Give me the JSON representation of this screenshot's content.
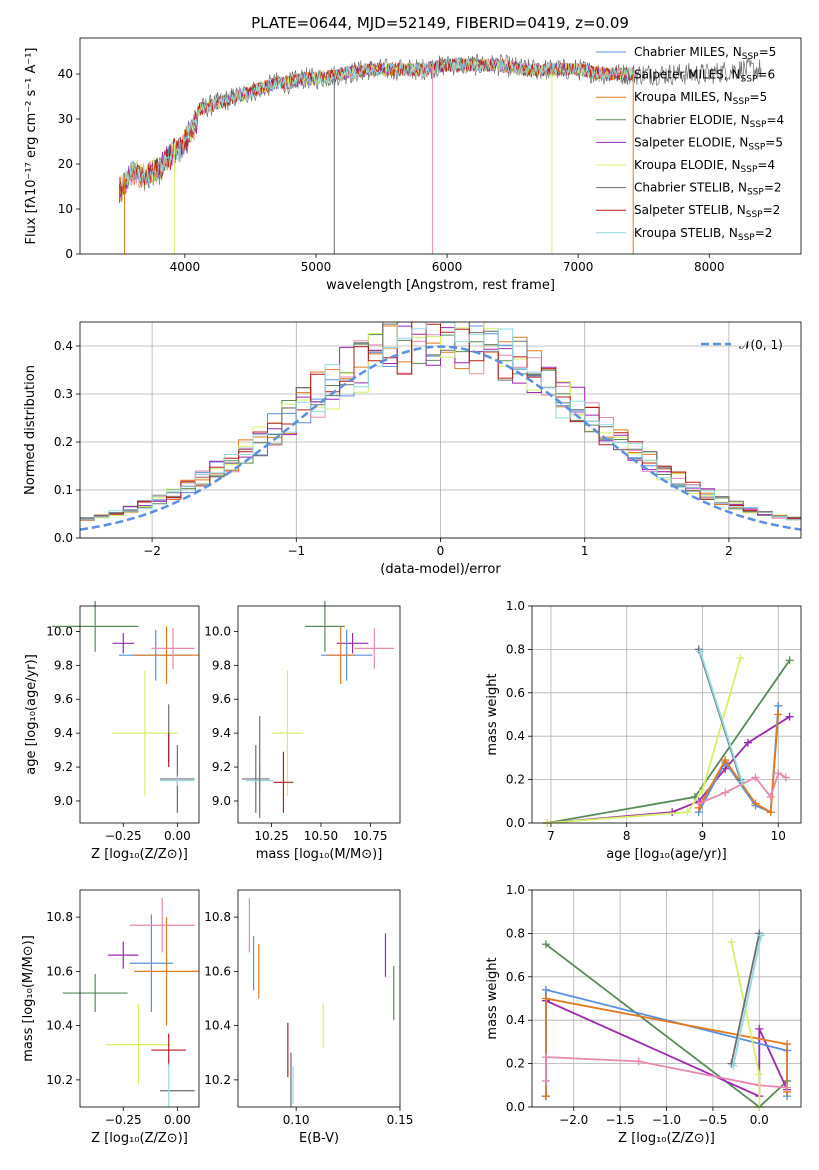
{
  "figure_title": "PLATE=0644, MJD=52149, FIBERID=0419, z=0.09",
  "colors": {
    "chabrier_miles": "#5b8fe0",
    "salpeter_miles": "#e88ab0",
    "kroupa_miles": "#e07b20",
    "chabrier_elodie": "#5a8a5a",
    "salpeter_elodie": "#9c27b0",
    "kroupa_elodie": "#d4f06a",
    "chabrier_stelib": "#6e6e6e",
    "salpeter_stelib": "#b71c1c",
    "kroupa_stelib": "#93d9e0"
  },
  "chart_data": [
    {
      "id": "spectrum",
      "type": "line",
      "xlabel": "wavelength [Angstrom, rest frame]",
      "ylabel": "Flux [fλ10⁻¹⁷ erg cm⁻² s⁻¹ A⁻¹]",
      "xlim": [
        3200,
        8700
      ],
      "ylim": [
        0,
        48
      ],
      "xticks": [
        4000,
        5000,
        6000,
        7000,
        8000
      ],
      "yticks": [
        0,
        10,
        20,
        30,
        40
      ],
      "legend_position": "top-right",
      "grid": false,
      "spectrum_envelope": {
        "x": [
          3500,
          3600,
          3700,
          3800,
          3900,
          4000,
          4100,
          4200,
          4300,
          4400,
          4500,
          4600,
          4700,
          4800,
          4900,
          5000,
          5200,
          5400,
          5600,
          5800,
          6000,
          6200,
          6400,
          6600,
          6800,
          7000,
          7200,
          7400,
          7600,
          7800,
          8000,
          8200,
          8400
        ],
        "y": [
          16,
          20,
          19,
          21,
          24,
          27,
          32,
          33,
          34,
          35,
          36,
          37,
          38,
          38,
          39,
          39,
          40,
          41,
          41,
          41,
          42,
          42,
          42,
          41,
          41,
          41,
          40,
          40,
          40,
          40,
          40,
          41,
          41
        ]
      },
      "series": [
        {
          "name": "Chabrier MILES, N_SSP=5",
          "label_main": "Chabrier MILES, N",
          "label_sub": "SSP",
          "label_tail": "=5",
          "color_key": "chabrier_miles"
        },
        {
          "name": "Salpeter MILES, N_SSP=6",
          "label_main": "Salpeter MILES, N",
          "label_sub": "SSP",
          "label_tail": "=6",
          "color_key": "salpeter_miles"
        },
        {
          "name": "Kroupa MILES, N_SSP=5",
          "label_main": "Kroupa MILES, N",
          "label_sub": "SSP",
          "label_tail": "=5",
          "color_key": "kroupa_miles"
        },
        {
          "name": "Chabrier ELODIE, N_SSP=4",
          "label_main": "Chabrier ELODIE, N",
          "label_sub": "SSP",
          "label_tail": "=4",
          "color_key": "chabrier_elodie"
        },
        {
          "name": "Salpeter ELODIE, N_SSP=5",
          "label_main": "Salpeter ELODIE, N",
          "label_sub": "SSP",
          "label_tail": "=5",
          "color_key": "salpeter_elodie"
        },
        {
          "name": "Kroupa ELODIE, N_SSP=4",
          "label_main": "Kroupa ELODIE, N",
          "label_sub": "SSP",
          "label_tail": "=4",
          "color_key": "kroupa_elodie"
        },
        {
          "name": "Chabrier STELIB, N_SSP=2",
          "label_main": "Chabrier STELIB, N",
          "label_sub": "SSP",
          "label_tail": "=2",
          "color_key": "chabrier_stelib"
        },
        {
          "name": "Salpeter STELIB, N_SSP=2",
          "label_main": "Salpeter STELIB, N",
          "label_sub": "SSP",
          "label_tail": "=2",
          "color_key": "salpeter_stelib"
        },
        {
          "name": "Kroupa STELIB, N_SSP=2",
          "label_main": "Kroupa STELIB, N",
          "label_sub": "SSP",
          "label_tail": "=2",
          "color_key": "kroupa_stelib"
        }
      ]
    },
    {
      "id": "residuals",
      "type": "histogram",
      "xlabel": "(data-model)/error",
      "ylabel": "Normed distribution",
      "xlim": [
        -2.5,
        2.5
      ],
      "ylim": [
        0,
        0.45
      ],
      "xticks": [
        -2,
        -1,
        0,
        1,
        2
      ],
      "yticks": [
        0.0,
        0.1,
        0.2,
        0.3,
        0.4
      ],
      "grid": true,
      "legend_position": "top-right",
      "reference_curve": {
        "name": "𝒩(0, 1)",
        "mean": 0,
        "sigma": 1,
        "color": "#5b8fe0"
      }
    },
    {
      "id": "age_vs_z",
      "type": "scatter",
      "xlabel": "Z [log₁₀(Z/Z⊙)]",
      "ylabel": "age  [log₁₀(age/yr)]",
      "xlim": [
        -0.45,
        0.1
      ],
      "ylim": [
        8.87,
        10.15
      ],
      "xticks": [
        -0.25,
        0.0
      ],
      "xtick_labels": [
        "−0.25",
        "0.00"
      ],
      "yticks": [
        9.0,
        9.2,
        9.4,
        9.6,
        9.8,
        10.0
      ],
      "grid": false,
      "points": [
        {
          "color_key": "chabrier_elodie",
          "x": -0.38,
          "y": 10.03,
          "xerr": 0.2,
          "yerr": 0.15
        },
        {
          "color_key": "salpeter_elodie",
          "x": -0.25,
          "y": 9.93,
          "xerr": 0.05,
          "yerr": 0.06
        },
        {
          "color_key": "chabrier_miles",
          "x": -0.1,
          "y": 9.86,
          "xerr": 0.17,
          "yerr": 0.15
        },
        {
          "color_key": "kroupa_miles",
          "x": -0.05,
          "y": 9.86,
          "xerr": 0.15,
          "yerr": 0.17
        },
        {
          "color_key": "salpeter_miles",
          "x": -0.02,
          "y": 9.9,
          "xerr": 0.1,
          "yerr": 0.12
        },
        {
          "color_key": "kroupa_elodie",
          "x": -0.15,
          "y": 9.4,
          "xerr": 0.15,
          "yerr": 0.37
        },
        {
          "color_key": "chabrier_stelib",
          "x": -0.04,
          "y": 9.4,
          "xerr": 0.0,
          "yerr": 0.17
        },
        {
          "color_key": "salpeter_stelib",
          "x": -0.04,
          "y": 9.3,
          "xerr": 0.0,
          "yerr": 0.1
        },
        {
          "color_key": "chabrier_stelib",
          "x": 0.0,
          "y": 9.13,
          "xerr": 0.08,
          "yerr": 0.2
        },
        {
          "color_key": "kroupa_stelib",
          "x": 0.0,
          "y": 9.12,
          "xerr": 0.08,
          "yerr": 0.03
        }
      ]
    },
    {
      "id": "age_vs_mass",
      "type": "scatter",
      "xlabel": "mass [log₁₀(M/M⊙)]",
      "xlim": [
        10.08,
        10.9
      ],
      "ylim": [
        8.87,
        10.15
      ],
      "xticks": [
        10.25,
        10.5,
        10.75
      ],
      "xtick_labels": [
        "10.25",
        "10.50",
        "10.75"
      ],
      "yticks": [
        9.0,
        9.2,
        9.4,
        9.6,
        9.8,
        10.0
      ],
      "grid": false,
      "points": [
        {
          "color_key": "chabrier_elodie",
          "x": 10.52,
          "y": 10.03,
          "xerr": 0.1,
          "yerr": 0.15
        },
        {
          "color_key": "salpeter_elodie",
          "x": 10.66,
          "y": 9.93,
          "xerr": 0.08,
          "yerr": 0.06
        },
        {
          "color_key": "chabrier_miles",
          "x": 10.63,
          "y": 9.86,
          "xerr": 0.13,
          "yerr": 0.15
        },
        {
          "color_key": "kroupa_miles",
          "x": 10.6,
          "y": 9.86,
          "xerr": 0.07,
          "yerr": 0.17
        },
        {
          "color_key": "salpeter_miles",
          "x": 10.77,
          "y": 9.9,
          "xerr": 0.1,
          "yerr": 0.12
        },
        {
          "color_key": "kroupa_elodie",
          "x": 10.33,
          "y": 9.4,
          "xerr": 0.08,
          "yerr": 0.37
        },
        {
          "color_key": "chabrier_stelib",
          "x": 10.17,
          "y": 9.13,
          "xerr": 0.07,
          "yerr": 0.2
        },
        {
          "color_key": "kroupa_stelib",
          "x": 10.19,
          "y": 9.12,
          "xerr": 0.07,
          "yerr": 0.1
        },
        {
          "color_key": "salpeter_stelib",
          "x": 10.31,
          "y": 9.11,
          "xerr": 0.05,
          "yerr": 0.18
        },
        {
          "color_key": "chabrier_stelib",
          "x": 10.19,
          "y": 9.2,
          "xerr": 0.0,
          "yerr": 0.3
        }
      ]
    },
    {
      "id": "weights_vs_age",
      "type": "line",
      "xlabel": "age  [log₁₀(age/yr)]",
      "ylabel": "mass weight",
      "xlim": [
        6.75,
        10.3
      ],
      "ylim": [
        0,
        1.0
      ],
      "xticks": [
        7,
        8,
        9,
        10
      ],
      "yticks": [
        0.0,
        0.2,
        0.4,
        0.6,
        0.8,
        1.0
      ],
      "grid": true,
      "series": [
        {
          "color_key": "chabrier_elodie",
          "x": [
            6.95,
            8.9,
            10.15
          ],
          "y": [
            0.0,
            0.12,
            0.75
          ]
        },
        {
          "color_key": "salpeter_elodie",
          "x": [
            6.95,
            8.6,
            8.95,
            9.3,
            9.6,
            10.15
          ],
          "y": [
            0.0,
            0.05,
            0.1,
            0.25,
            0.37,
            0.49
          ]
        },
        {
          "color_key": "kroupa_elodie",
          "x": [
            6.95,
            8.8,
            9.0,
            9.5
          ],
          "y": [
            0.0,
            0.05,
            0.15,
            0.76
          ]
        },
        {
          "color_key": "chabrier_miles",
          "x": [
            8.95,
            9.3,
            9.7,
            9.9,
            10.0
          ],
          "y": [
            0.05,
            0.28,
            0.08,
            0.05,
            0.54
          ]
        },
        {
          "color_key": "kroupa_miles",
          "x": [
            8.95,
            9.3,
            9.7,
            9.9,
            10.0
          ],
          "y": [
            0.07,
            0.29,
            0.09,
            0.05,
            0.5
          ]
        },
        {
          "color_key": "salpeter_miles",
          "x": [
            8.95,
            9.3,
            9.7,
            9.9,
            10.0,
            10.1
          ],
          "y": [
            0.09,
            0.14,
            0.21,
            0.12,
            0.23,
            0.21
          ]
        },
        {
          "color_key": "chabrier_stelib",
          "x": [
            8.95,
            9.5
          ],
          "y": [
            0.8,
            0.2
          ]
        },
        {
          "color_key": "kroupa_stelib",
          "x": [
            8.97,
            9.52
          ],
          "y": [
            0.79,
            0.19
          ]
        }
      ]
    },
    {
      "id": "mass_vs_z",
      "type": "scatter",
      "xlabel": "Z [log₁₀(Z/Z⊙)]",
      "ylabel": "mass [log₁₀(M/M⊙)]",
      "xlim": [
        -0.45,
        0.1
      ],
      "ylim": [
        10.1,
        10.9
      ],
      "xticks": [
        -0.25,
        0.0
      ],
      "xtick_labels": [
        "−0.25",
        "0.00"
      ],
      "yticks": [
        10.2,
        10.4,
        10.6,
        10.8
      ],
      "grid": false,
      "points": [
        {
          "color_key": "chabrier_elodie",
          "x": -0.38,
          "y": 10.52,
          "xerr": 0.15,
          "yerr": 0.07
        },
        {
          "color_key": "salpeter_elodie",
          "x": -0.25,
          "y": 10.66,
          "xerr": 0.07,
          "yerr": 0.05
        },
        {
          "color_key": "chabrier_miles",
          "x": -0.12,
          "y": 10.63,
          "xerr": 0.1,
          "yerr": 0.18
        },
        {
          "color_key": "kroupa_miles",
          "x": -0.05,
          "y": 10.6,
          "xerr": 0.15,
          "yerr": 0.2
        },
        {
          "color_key": "salpeter_miles",
          "x": -0.07,
          "y": 10.77,
          "xerr": 0.15,
          "yerr": 0.1
        },
        {
          "color_key": "kroupa_elodie",
          "x": -0.18,
          "y": 10.33,
          "xerr": 0.15,
          "yerr": 0.15
        },
        {
          "color_key": "salpeter_stelib",
          "x": -0.04,
          "y": 10.31,
          "xerr": 0.08,
          "yerr": 0.06
        },
        {
          "color_key": "chabrier_stelib",
          "x": 0.0,
          "y": 10.16,
          "xerr": 0.08,
          "yerr": 0.0
        },
        {
          "color_key": "kroupa_stelib",
          "x": -0.04,
          "y": 10.18,
          "xerr": 0.0,
          "yerr": 0.08
        }
      ]
    },
    {
      "id": "mass_vs_ebv",
      "type": "scatter",
      "xlabel": "E(B-V)",
      "xlim": [
        0.072,
        0.15
      ],
      "ylim": [
        10.1,
        10.9
      ],
      "xticks": [
        0.1,
        0.15
      ],
      "xtick_labels": [
        "0.10",
        "0.15"
      ],
      "yticks": [
        10.2,
        10.4,
        10.6,
        10.8
      ],
      "grid": false,
      "points": [
        {
          "color_key": "salpeter_miles",
          "x": 0.0775,
          "y": 10.77,
          "xerr": 0.0,
          "yerr": 0.1
        },
        {
          "color_key": "chabrier_miles",
          "x": 0.0795,
          "y": 10.63,
          "xerr": 0.0,
          "yerr": 0.1
        },
        {
          "color_key": "kroupa_miles",
          "x": 0.082,
          "y": 10.6,
          "xerr": 0.0,
          "yerr": 0.1
        },
        {
          "color_key": "salpeter_stelib",
          "x": 0.096,
          "y": 10.31,
          "xerr": 0.0,
          "yerr": 0.1
        },
        {
          "color_key": "chabrier_stelib",
          "x": 0.0975,
          "y": 10.2,
          "xerr": 0.0,
          "yerr": 0.1
        },
        {
          "color_key": "kroupa_stelib",
          "x": 0.0985,
          "y": 10.18,
          "xerr": 0.0,
          "yerr": 0.07
        },
        {
          "color_key": "kroupa_elodie",
          "x": 0.113,
          "y": 10.4,
          "xerr": 0.0,
          "yerr": 0.08
        },
        {
          "color_key": "salpeter_elodie",
          "x": 0.143,
          "y": 10.66,
          "xerr": 0.0,
          "yerr": 0.08
        },
        {
          "color_key": "chabrier_elodie",
          "x": 0.147,
          "y": 10.52,
          "xerr": 0.0,
          "yerr": 0.1
        }
      ]
    },
    {
      "id": "weights_vs_z",
      "type": "line",
      "xlabel": "Z [log₁₀(Z/Z⊙)]",
      "ylabel": "mass weight",
      "xlim": [
        -2.45,
        0.45
      ],
      "ylim": [
        0,
        1.0
      ],
      "xticks": [
        -2.0,
        -1.5,
        -1.0,
        -0.5,
        0.0
      ],
      "xtick_labels": [
        "−2.0",
        "−1.5",
        "−1.0",
        "−0.5",
        "0.0"
      ],
      "yticks": [
        0.0,
        0.2,
        0.4,
        0.6,
        0.8,
        1.0
      ],
      "grid": true,
      "series": [
        {
          "color_key": "chabrier_elodie",
          "x": [
            -2.3,
            0.0,
            0.3
          ],
          "y": [
            0.75,
            0.0,
            0.12
          ]
        },
        {
          "color_key": "salpeter_elodie",
          "x": [
            -2.3,
            -2.3,
            0.0,
            0.0,
            0.3
          ],
          "y": [
            0.05,
            0.49,
            0.05,
            0.36,
            0.08
          ]
        },
        {
          "color_key": "chabrier_miles",
          "x": [
            -2.3,
            -2.3,
            0.3,
            0.3
          ],
          "y": [
            0.05,
            0.54,
            0.26,
            0.05
          ]
        },
        {
          "color_key": "kroupa_miles",
          "x": [
            -2.3,
            -2.3,
            0.3,
            0.3
          ],
          "y": [
            0.05,
            0.5,
            0.29,
            0.07
          ]
        },
        {
          "color_key": "salpeter_miles",
          "x": [
            -2.3,
            -2.3,
            -1.3,
            0.0,
            0.3
          ],
          "y": [
            0.12,
            0.23,
            0.21,
            0.1,
            0.09
          ]
        },
        {
          "color_key": "kroupa_elodie",
          "x": [
            -0.3,
            0.0,
            0.0
          ],
          "y": [
            0.76,
            0.15,
            0.0
          ]
        },
        {
          "color_key": "chabrier_stelib",
          "x": [
            0.0,
            -0.3
          ],
          "y": [
            0.8,
            0.2
          ]
        },
        {
          "color_key": "kroupa_stelib",
          "x": [
            0.02,
            -0.28
          ],
          "y": [
            0.79,
            0.19
          ]
        }
      ]
    }
  ]
}
